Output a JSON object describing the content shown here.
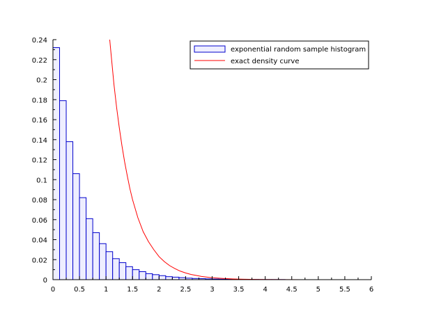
{
  "chart_data": {
    "type": "bar",
    "title": "",
    "xlabel": "",
    "ylabel": "",
    "xlim": [
      0,
      6
    ],
    "ylim": [
      0,
      0.24
    ],
    "x_ticks": [
      "0",
      "0.5",
      "1",
      "1.5",
      "2",
      "2.5",
      "3",
      "3.5",
      "4",
      "4.5",
      "5",
      "5.5",
      "6"
    ],
    "y_ticks": [
      "0",
      "0.02",
      "0.04",
      "0.06",
      "0.08",
      "0.1",
      "0.12",
      "0.14",
      "0.16",
      "0.18",
      "0.2",
      "0.22",
      "0.24"
    ],
    "grid": false,
    "legend_position": "top-right",
    "legend": [
      {
        "label": "exponential random sample histogram",
        "kind": "bar"
      },
      {
        "label": "exact density curve",
        "kind": "line"
      }
    ],
    "colors": {
      "bar_stroke": "#0000cc",
      "bar_fill": "#eeeeff",
      "curve": "#ff0000"
    },
    "histogram": {
      "bin_width": 0.125,
      "bin_starts": [
        0,
        0.125,
        0.25,
        0.375,
        0.5,
        0.625,
        0.75,
        0.875,
        1.0,
        1.125,
        1.25,
        1.375,
        1.5,
        1.625,
        1.75,
        1.875,
        2.0,
        2.125,
        2.25,
        2.375,
        2.5,
        2.625,
        2.75,
        2.875,
        3.0,
        3.125,
        3.25,
        3.375,
        3.5,
        3.625,
        3.75,
        3.875,
        4.0,
        4.125,
        4.25
      ],
      "values": [
        0.232,
        0.179,
        0.138,
        0.106,
        0.082,
        0.061,
        0.047,
        0.036,
        0.028,
        0.021,
        0.017,
        0.013,
        0.01,
        0.008,
        0.006,
        0.005,
        0.004,
        0.003,
        0.0025,
        0.002,
        0.0015,
        0.0012,
        0.001,
        0.0008,
        0.0006,
        0.0005,
        0.0004,
        0.0003,
        0.0003,
        0.0002,
        0.0002,
        0.0001,
        0.0001,
        0.0001,
        0.0001
      ]
    },
    "curve": {
      "x": [
        1.07,
        1.1,
        1.15,
        1.2,
        1.25,
        1.3,
        1.35,
        1.4,
        1.45,
        1.5,
        1.6,
        1.7,
        1.8,
        1.9,
        2.0,
        2.1,
        2.2,
        2.3,
        2.4,
        2.5,
        2.6,
        2.8,
        3.0,
        3.2,
        3.4,
        3.6,
        3.8,
        4.0,
        4.3,
        4.7,
        5.0,
        5.3
      ],
      "y": [
        0.24,
        0.223,
        0.195,
        0.172,
        0.152,
        0.134,
        0.118,
        0.104,
        0.091,
        0.08,
        0.062,
        0.048,
        0.038,
        0.03,
        0.023,
        0.018,
        0.014,
        0.011,
        0.0085,
        0.0067,
        0.0052,
        0.0032,
        0.0019,
        0.0012,
        0.0007,
        0.0004,
        0.00025,
        0.00015,
        6e-05,
        2e-05,
        1e-05,
        5e-06
      ]
    }
  }
}
